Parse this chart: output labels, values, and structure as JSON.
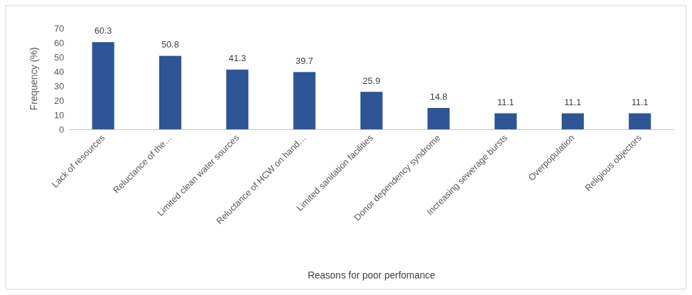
{
  "chart_data": {
    "type": "bar",
    "xlabel": "Reasons for poor perfomance",
    "ylabel": "Frequency (%)",
    "categories": [
      "Lack of resources",
      "Reluctance of the…",
      "Limited clean water sources",
      "Reluctance of HCW on hand…",
      "Limited sanitation facilities",
      "Donor dependency syndrome",
      "Increasing sewerage bursts",
      "Overpopulation",
      "Religious objectors"
    ],
    "values": [
      60.3,
      50.8,
      41.3,
      39.7,
      25.9,
      14.8,
      11.1,
      11.1,
      11.1
    ],
    "color": "#2f5597",
    "ylim": [
      0,
      70
    ],
    "yticks": [
      0,
      10,
      20,
      30,
      40,
      50,
      60,
      70
    ],
    "grid": false,
    "data_labels": true
  }
}
